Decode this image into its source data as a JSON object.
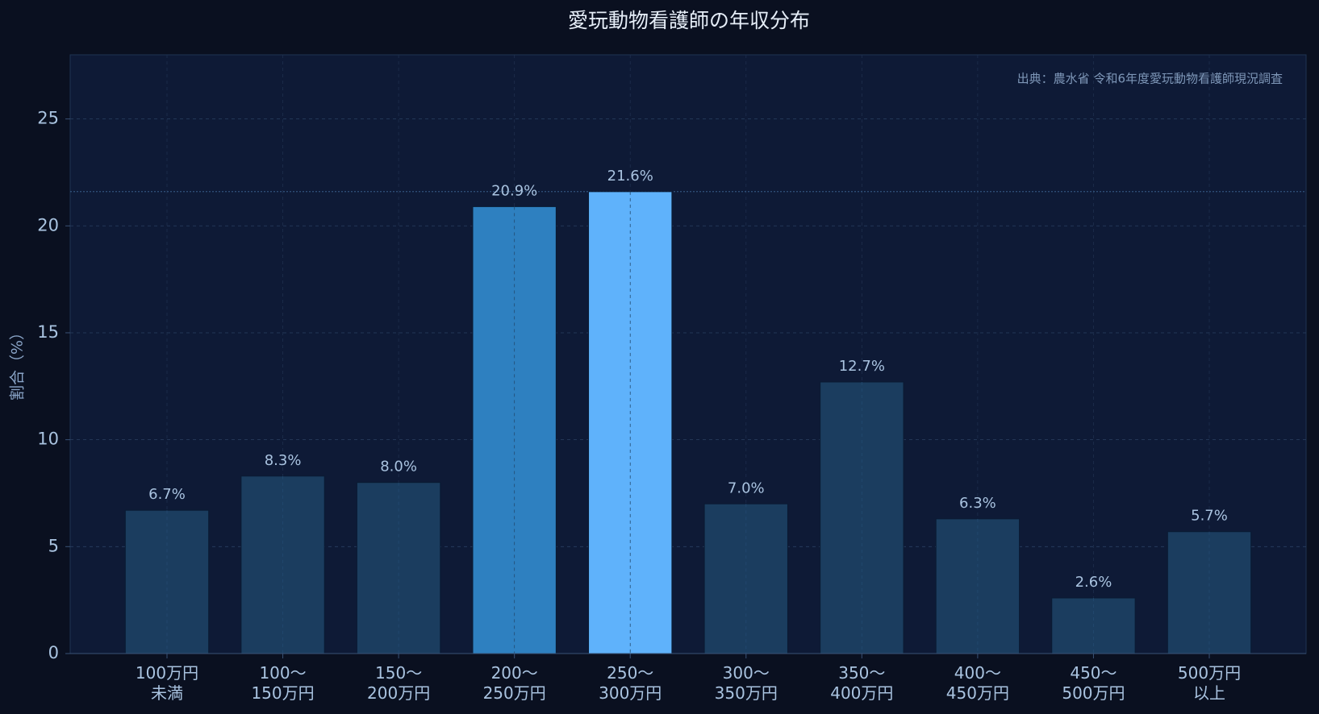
{
  "chart_data": {
    "type": "bar",
    "title": "愛玩動物看護師の年収分布",
    "annotation": "出典：農水省 令和6年度愛玩動物看護師現況調査",
    "y_label": "割合（%）",
    "categories": [
      "100万円\n未満",
      "100〜\n150万円",
      "150〜\n200万円",
      "200〜\n250万円",
      "250〜\n300万円",
      "300〜\n350万円",
      "350〜\n400万円",
      "400〜\n450万円",
      "450〜\n500万円",
      "500万円\n以上"
    ],
    "values": [
      6.7,
      8.3,
      8.0,
      20.9,
      21.6,
      7.0,
      12.7,
      6.3,
      2.6,
      5.7
    ],
    "value_labels": [
      "6.7%",
      "8.3%",
      "8.0%",
      "20.9%",
      "21.6%",
      "7.0%",
      "12.7%",
      "6.3%",
      "2.6%",
      "5.7%"
    ],
    "colors": [
      "#1b3d5f",
      "#1b3d5f",
      "#1b3d5f",
      "#2e80c0",
      "#5fb2fb",
      "#1b3d5f",
      "#1b3d5f",
      "#1b3d5f",
      "#1b3d5f",
      "#1b3d5f"
    ],
    "ylim": [
      0,
      28
    ],
    "yticks": [
      0,
      5,
      10,
      15,
      20,
      25
    ],
    "grid": true
  }
}
